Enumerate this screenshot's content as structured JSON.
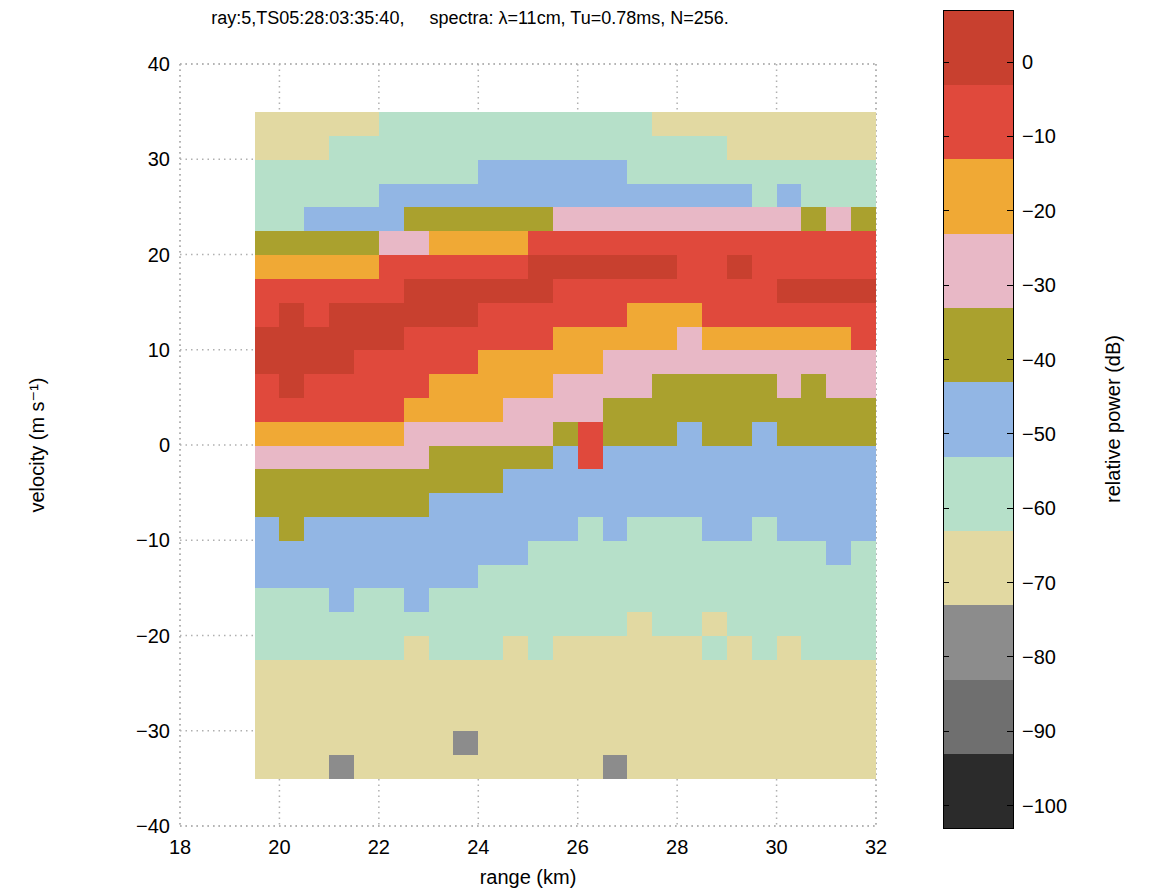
{
  "chart_data": {
    "type": "heatmap",
    "title": "ray:5,TS05:28:03:35:40,     spectra: λ=11cm, Tu=0.78ms, N=256.",
    "x_label": "range (km)",
    "y_label": "velocity (m s⁻¹)",
    "xlim": [
      18,
      32
    ],
    "xticks": [
      18,
      20,
      22,
      24,
      26,
      28,
      30,
      32
    ],
    "ylim": [
      -40,
      40
    ],
    "yticks": [
      {
        "value": -40,
        "label": "−40"
      },
      {
        "value": -30,
        "label": "−30"
      },
      {
        "value": -20,
        "label": "−20"
      },
      {
        "value": -10,
        "label": "−10"
      },
      0,
      10,
      20,
      30,
      40
    ],
    "grid": true,
    "x_edges": [
      19.5,
      20,
      20.5,
      21,
      21.5,
      22,
      22.5,
      23,
      23.5,
      24,
      24.5,
      25,
      25.5,
      26,
      26.5,
      27,
      27.5,
      28,
      28.5,
      29,
      29.5,
      30,
      30.5,
      31,
      31.5,
      32
    ],
    "y_edges": [
      -35,
      -32.5,
      -30,
      -27.5,
      -25,
      -22.5,
      -20,
      -17.5,
      -15,
      -12.5,
      -10,
      -7.5,
      -5,
      -2.5,
      0,
      2.5,
      5,
      7.5,
      10,
      12.5,
      15,
      17.5,
      20,
      22.5,
      25,
      27.5,
      30,
      32.5,
      35
    ],
    "cells": [
      [
        -72,
        -68,
        -70,
        -74,
        -66,
        -71,
        -69,
        -73,
        -67,
        -70,
        -72,
        -68,
        -65,
        -71,
        -74,
        -69,
        -66,
        -70,
        -73,
        -68,
        -71,
        -67,
        -70,
        -66,
        -72
      ],
      [
        -70,
        -73,
        -67,
        -69,
        -72,
        -66,
        -71,
        -68,
        -74,
        -69,
        -67,
        -70,
        -72,
        -68,
        -66,
        -71,
        -73,
        -69,
        -67,
        -70,
        -68,
        -72,
        -66,
        -71,
        -69
      ],
      [
        -68,
        -71,
        -70,
        -66,
        -73,
        -69,
        -67,
        -72,
        -70,
        -68,
        -71,
        -66,
        -69,
        -73,
        -67,
        -70,
        -68,
        -72,
        -66,
        -69,
        -71,
        -67,
        -70,
        -68,
        -73
      ],
      [
        -66,
        -69,
        -71,
        -67,
        -70,
        -72,
        -68,
        -66,
        -71,
        -69,
        -67,
        -70,
        -68,
        -66,
        -72,
        -69,
        -71,
        -67,
        -70,
        -68,
        -66,
        -69,
        -71,
        -67,
        -68
      ],
      [
        -64,
        -66,
        -68,
        -65,
        -67,
        -69,
        -66,
        -64,
        -68,
        -66,
        -65,
        -67,
        -69,
        -66,
        -68,
        -65,
        -67,
        -66,
        -68,
        -64,
        -66,
        -65,
        -67,
        -64,
        -66
      ],
      [
        -60,
        -62,
        -61,
        -63,
        -60,
        -62,
        -64,
        -61,
        -63,
        -62,
        -64,
        -63,
        -65,
        -64,
        -66,
        -65,
        -64,
        -66,
        -63,
        -65,
        -62,
        -64,
        -61,
        -63,
        -62
      ],
      [
        -57,
        -58,
        -56,
        -58,
        -57,
        -55,
        -58,
        -56,
        -57,
        -59,
        -60,
        -61,
        -62,
        -63,
        -62,
        -64,
        -63,
        -62,
        -64,
        -61,
        -63,
        -60,
        -62,
        -59,
        -61
      ],
      [
        -55,
        -54,
        -56,
        -53,
        -55,
        -54,
        -52,
        -55,
        -54,
        -56,
        -57,
        -58,
        -59,
        -60,
        -61,
        -60,
        -62,
        -61,
        -60,
        -59,
        -61,
        -58,
        -60,
        -57,
        -59
      ],
      [
        -52,
        -51,
        -53,
        -52,
        -50,
        -52,
        -51,
        -53,
        -52,
        -54,
        -55,
        -56,
        -57,
        -58,
        -57,
        -59,
        -58,
        -60,
        -58,
        -57,
        -59,
        -56,
        -58,
        -55,
        -57
      ],
      [
        -49,
        -48,
        -50,
        -49,
        -48,
        -50,
        -49,
        -50,
        -51,
        -52,
        -53,
        -54,
        -55,
        -56,
        -55,
        -57,
        -56,
        -57,
        -56,
        -55,
        -56,
        -54,
        -55,
        -53,
        -55
      ],
      [
        -44,
        -43,
        -45,
        -44,
        -46,
        -45,
        -46,
        -48,
        -49,
        -50,
        -51,
        -52,
        -53,
        -54,
        -53,
        -55,
        -54,
        -55,
        -53,
        -52,
        -54,
        -52,
        -53,
        -51,
        -52
      ],
      [
        -40,
        -39,
        -41,
        -40,
        -41,
        -42,
        -42,
        -44,
        -46,
        -47,
        -48,
        -50,
        -51,
        -52,
        -51,
        -53,
        -52,
        -53,
        -51,
        -50,
        -52,
        -50,
        -51,
        -49,
        -50
      ],
      [
        -36,
        -35,
        -37,
        -36,
        -37,
        -38,
        -38,
        -40,
        -42,
        -43,
        -45,
        -47,
        -48,
        -49,
        -48,
        -50,
        -50,
        -51,
        -49,
        -48,
        -50,
        -48,
        -49,
        -47,
        -48
      ],
      [
        -28,
        -27,
        -29,
        -30,
        -31,
        -32,
        -32,
        -35,
        -36,
        -37,
        -40,
        -42,
        -44,
        -12,
        -46,
        -48,
        -48,
        -49,
        -47,
        -46,
        -48,
        -46,
        -47,
        -45,
        -46
      ],
      [
        -16,
        -14,
        -17,
        -18,
        -20,
        -22,
        -24,
        -26,
        -28,
        -27,
        -30,
        -33,
        -36,
        -8,
        -40,
        -42,
        -43,
        -44,
        -43,
        -42,
        -44,
        -42,
        -43,
        -41,
        -42
      ],
      [
        -8,
        -6,
        -9,
        -10,
        -11,
        -13,
        -15,
        -20,
        -22,
        -23,
        -25,
        -28,
        -30,
        -32,
        -36,
        -38,
        -40,
        -41,
        -40,
        -39,
        -40,
        -38,
        -39,
        -37,
        -38
      ],
      [
        -4,
        -3,
        -5,
        -6,
        -8,
        -10,
        -12,
        -15,
        -18,
        -19,
        -20,
        -22,
        -25,
        -28,
        -30,
        -33,
        -35,
        -36,
        -35,
        -34,
        -35,
        -33,
        -34,
        -32,
        -33
      ],
      [
        -2,
        -1,
        -2,
        -3,
        -4,
        -5,
        -7,
        -9,
        -12,
        -14,
        -16,
        -18,
        -20,
        -22,
        -24,
        -27,
        -29,
        -30,
        -29,
        -28,
        -27,
        -26,
        -27,
        -25,
        -26
      ],
      [
        -2,
        -1,
        -3,
        -2,
        -3,
        -3,
        -4,
        -5,
        -6,
        -7,
        -9,
        -11,
        -14,
        -16,
        -19,
        -22,
        -23,
        -24,
        -22,
        -20,
        -19,
        -18,
        -17,
        -14,
        -13
      ],
      [
        -4,
        -3,
        -4,
        -3,
        -2,
        -2,
        -3,
        -3,
        -3,
        -4,
        -5,
        -6,
        -8,
        -10,
        -12,
        -14,
        -15,
        -15,
        -13,
        -12,
        -10,
        -9,
        -8,
        -7,
        -6
      ],
      [
        -9,
        -8,
        -7,
        -6,
        -5,
        -4,
        -3,
        -2,
        -2,
        -2,
        -3,
        -3,
        -4,
        -4,
        -5,
        -5,
        -5,
        -6,
        -5,
        -4,
        -4,
        -3,
        -3,
        -2,
        -2
      ],
      [
        -22,
        -20,
        -18,
        -16,
        -14,
        -12,
        -9,
        -6,
        -5,
        -4,
        -4,
        -3,
        -3,
        -3,
        -3,
        -3,
        -3,
        -4,
        -4,
        -3,
        -4,
        -4,
        -5,
        -5,
        -4
      ],
      [
        -42,
        -40,
        -38,
        -36,
        -34,
        -30,
        -26,
        -22,
        -18,
        -16,
        -14,
        -12,
        -11,
        -10,
        -10,
        -10,
        -9,
        -10,
        -11,
        -12,
        -12,
        -11,
        -12,
        -11,
        -12
      ],
      [
        -55,
        -54,
        -52,
        -50,
        -48,
        -45,
        -42,
        -40,
        -38,
        -36,
        -35,
        -34,
        -30,
        -28,
        -26,
        -25,
        -26,
        -27,
        -28,
        -30,
        -32,
        -33,
        -34,
        -33,
        -35
      ],
      [
        -60,
        -59,
        -58,
        -56,
        -55,
        -53,
        -51,
        -50,
        -48,
        -47,
        -46,
        -45,
        -44,
        -44,
        -45,
        -47,
        -48,
        -49,
        -51,
        -53,
        -54,
        -53,
        -55,
        -54,
        -56
      ],
      [
        -63,
        -62,
        -61,
        -60,
        -59,
        -58,
        -56,
        -55,
        -54,
        -53,
        -52,
        -52,
        -51,
        -52,
        -53,
        -55,
        -56,
        -57,
        -58,
        -60,
        -61,
        -60,
        -62,
        -61,
        -63
      ],
      [
        -66,
        -65,
        -64,
        -62,
        -62,
        -61,
        -60,
        -59,
        -58,
        -57,
        -57,
        -56,
        -56,
        -57,
        -58,
        -60,
        -61,
        -62,
        -63,
        -64,
        -65,
        -64,
        -66,
        -65,
        -67
      ],
      [
        -68,
        -67,
        -66,
        -65,
        -64,
        -63,
        -62,
        -62,
        -61,
        -60,
        -60,
        -59,
        -60,
        -61,
        -62,
        -63,
        -64,
        -65,
        -66,
        -67,
        -68,
        -67,
        -69,
        -68,
        -70
      ]
    ],
    "colorbar": {
      "label": "relative power (dB)",
      "range": [
        -103,
        7
      ],
      "ticks": [
        {
          "value": -100,
          "label": "−100"
        },
        {
          "value": -90,
          "label": "−90"
        },
        {
          "value": -80,
          "label": "−80"
        },
        {
          "value": -70,
          "label": "−70"
        },
        {
          "value": -60,
          "label": "−60"
        },
        {
          "value": -50,
          "label": "−50"
        },
        {
          "value": -40,
          "label": "−40"
        },
        {
          "value": -30,
          "label": "−30"
        },
        {
          "value": -20,
          "label": "−20"
        },
        {
          "value": -10,
          "label": "−10"
        },
        0
      ],
      "bounds": [
        -103,
        -93,
        -83,
        -73,
        -63,
        -53,
        -43,
        -33,
        -23,
        -13,
        -3,
        7
      ],
      "colors": [
        "#2b2b2b",
        "#6f6f6f",
        "#8c8c8c",
        "#e2d9a2",
        "#b6e0c9",
        "#92b6e4",
        "#aaa12e",
        "#e8b8c6",
        "#f0a935",
        "#e0493c",
        "#c8402f"
      ]
    }
  }
}
